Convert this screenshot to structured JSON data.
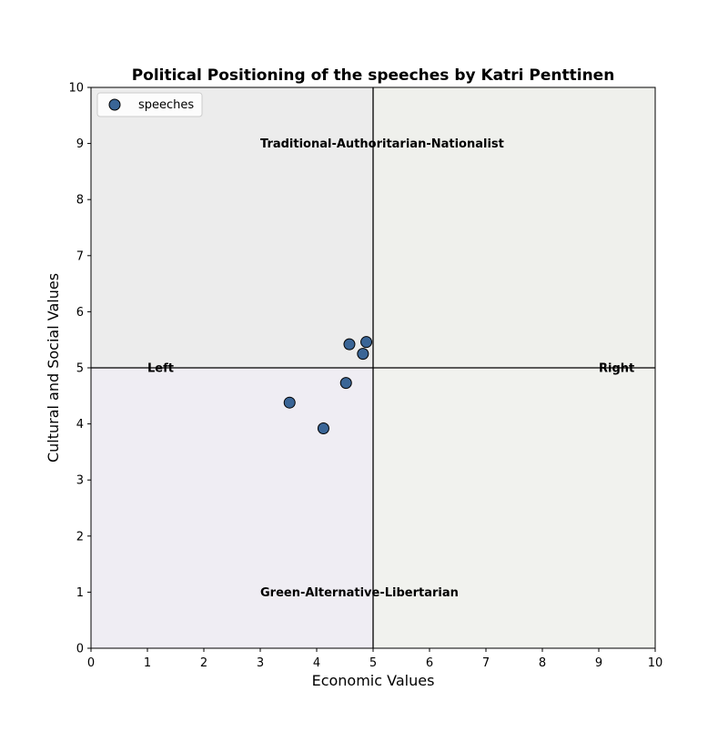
{
  "chart_data": {
    "type": "scatter",
    "title": "Political Positioning of the speeches by Katri Penttinen",
    "xlabel": "Economic Values",
    "ylabel": "Cultural and Social Values",
    "xlim": [
      0,
      10
    ],
    "ylim": [
      0,
      10
    ],
    "xticks": [
      0,
      1,
      2,
      3,
      4,
      5,
      6,
      7,
      8,
      9,
      10
    ],
    "yticks": [
      0,
      1,
      2,
      3,
      4,
      5,
      6,
      7,
      8,
      9,
      10
    ],
    "grid": false,
    "legend_position": "top-left",
    "quadrant_colors": {
      "top_left": "#ececec",
      "top_right": "#eff0ec",
      "bottom_left": "#efedf3",
      "bottom_right": "#f1f2ee"
    },
    "marker_color": "#3a6596",
    "annotations": [
      {
        "text": "Traditional-Authoritarian-Nationalist",
        "x": 3,
        "y": 9
      },
      {
        "text": "Green-Alternative-Libertarian",
        "x": 3,
        "y": 1
      },
      {
        "text": "Left",
        "x": 1,
        "y": 5
      },
      {
        "text": "Right",
        "x": 9,
        "y": 5
      }
    ],
    "series": [
      {
        "name": "speeches",
        "points": [
          {
            "x": 3.52,
            "y": 4.38
          },
          {
            "x": 4.12,
            "y": 3.92
          },
          {
            "x": 4.52,
            "y": 4.73
          },
          {
            "x": 4.58,
            "y": 5.42
          },
          {
            "x": 4.82,
            "y": 5.25
          },
          {
            "x": 4.88,
            "y": 5.46
          }
        ]
      }
    ]
  }
}
